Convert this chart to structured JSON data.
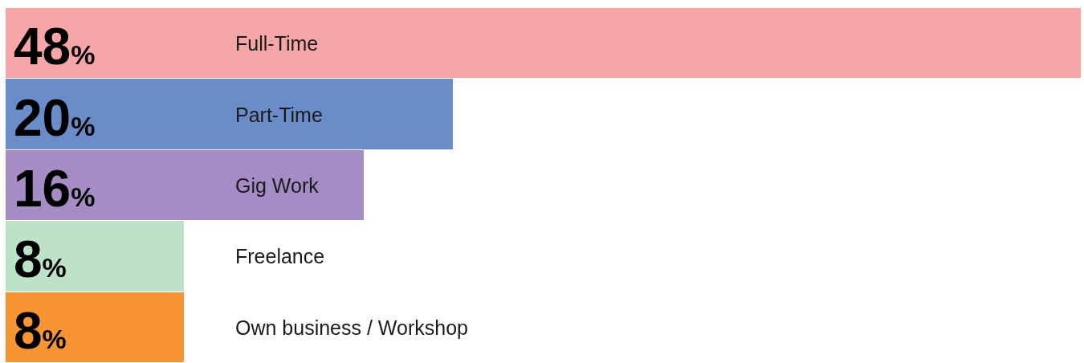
{
  "chart_data": {
    "type": "bar",
    "orientation": "horizontal",
    "categories": [
      "Full-Time",
      "Part-Time",
      "Gig Work",
      "Freelance",
      "Own business / Workshop"
    ],
    "values": [
      48,
      20,
      16,
      8,
      8
    ],
    "colors": [
      "#f7a6a8",
      "#6a8cc8",
      "#a58cc4",
      "#bde2c8",
      "#f79433"
    ],
    "value_labels": [
      "48%",
      "20%",
      "16%",
      "8%",
      "8%"
    ],
    "xlim": [
      0,
      48
    ]
  }
}
